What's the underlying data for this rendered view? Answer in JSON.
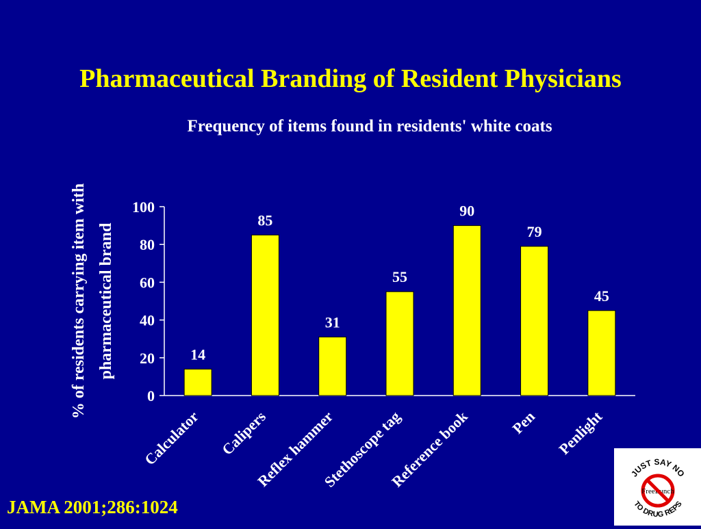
{
  "slide": {
    "title": "Pharmaceutical Branding of Resident Physicians",
    "citation": "JAMA 2001;286:1024"
  },
  "logo": {
    "text_top": "JUST SAY NO",
    "text_center": "FreeLunch",
    "text_bottom": "TO DRUG REPS"
  },
  "colors": {
    "background": "#00008f",
    "title": "#ffff00",
    "bar": "#ffff00",
    "text": "#ffffff"
  },
  "chart_data": {
    "type": "bar",
    "title": "Frequency of items found in residents' white coats",
    "ylabel_lines": [
      "% of residents carrying item with",
      "pharmaceutical brand"
    ],
    "xlabel": "",
    "categories": [
      "Calculator",
      "Calipers",
      "Reflex hammer",
      "Stethoscope tag",
      "Reference  book",
      "Pen",
      "Penlight"
    ],
    "values": [
      14,
      85,
      31,
      55,
      90,
      79,
      45
    ],
    "data_labels": [
      "14",
      "85",
      "31",
      "55",
      "90",
      "79",
      "45"
    ],
    "ylim": [
      0,
      100
    ],
    "yticks": [
      0,
      20,
      40,
      60,
      80,
      100
    ],
    "ytick_labels": [
      "0",
      "20",
      "40",
      "60",
      "80",
      "100"
    ],
    "grid": false,
    "legend": "none"
  }
}
